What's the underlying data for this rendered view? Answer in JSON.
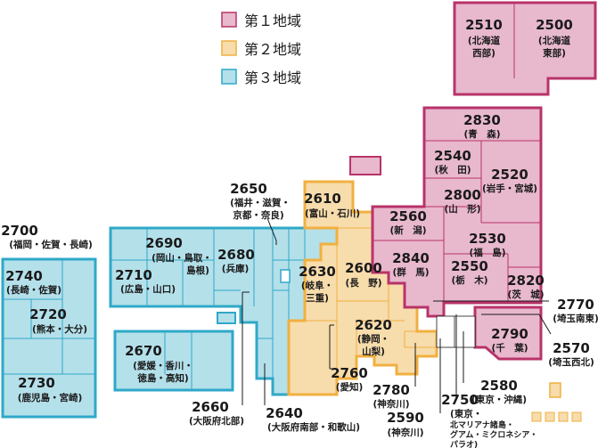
{
  "legend": [
    {
      "label": "第１地域",
      "color": "#e8b8cd",
      "border": "#b8336a"
    },
    {
      "label": "第２地域",
      "color": "#f7dcac",
      "border": "#f0b040"
    },
    {
      "label": "第３地域",
      "color": "#b4e0ea",
      "border": "#2fa8c8"
    }
  ],
  "regions": {
    "r2510": {
      "code": "2510",
      "name1": "(北海道",
      "name2": "西部)"
    },
    "r2500": {
      "code": "2500",
      "name1": "(北海道",
      "name2": "東部)"
    },
    "r2830": {
      "code": "2830",
      "name": "(青　森)"
    },
    "r2540": {
      "code": "2540",
      "name": "(秋　田)"
    },
    "r2520": {
      "code": "2520",
      "name": "(岩手・宮城)"
    },
    "r2800": {
      "code": "2800",
      "name": "(山　形)"
    },
    "r2560": {
      "code": "2560",
      "name": "(新　潟)"
    },
    "r2530": {
      "code": "2530",
      "name": "(福　島)"
    },
    "r2840": {
      "code": "2840",
      "name": "(群　馬)"
    },
    "r2550": {
      "code": "2550",
      "name": "(栃　木)"
    },
    "r2820": {
      "code": "2820",
      "name": "(茨　城)"
    },
    "r2790": {
      "code": "2790",
      "name": "(千　葉)"
    },
    "r2770": {
      "code": "2770",
      "name": "(埼玉南東)"
    },
    "r2570": {
      "code": "2570",
      "name": "(埼玉西北)"
    },
    "r2580": {
      "code": "2580",
      "name": "(東京・沖縄)"
    },
    "r2750": {
      "code": "2750",
      "name": "(東京・",
      "extra1": "北マリアナ諸島・",
      "extra2": "グアム・ミクロネシア・",
      "extra3": "パラオ)"
    },
    "r2590": {
      "code": "2590",
      "name": "(神奈川)"
    },
    "r2780": {
      "code": "2780",
      "name": "(神奈川)"
    },
    "r2760": {
      "code": "2760",
      "name": "(愛知)"
    },
    "r2620": {
      "code": "2620",
      "name1": "(静岡・",
      "name2": "山梨)"
    },
    "r2600": {
      "code": "2600",
      "name": "(長　野)"
    },
    "r2610": {
      "code": "2610",
      "name": "(富山・石川)"
    },
    "r2630": {
      "code": "2630",
      "name1": "(岐阜・",
      "name2": "三重)"
    },
    "r2650": {
      "code": "2650",
      "name1": "(福井・滋賀・",
      "name2": "京都・奈良)"
    },
    "r2680": {
      "code": "2680",
      "name": "(兵庫)"
    },
    "r2690": {
      "code": "2690",
      "name1": "(岡山・鳥取・",
      "name2": "島根)"
    },
    "r2710": {
      "code": "2710",
      "name": "(広島・山口)"
    },
    "r2670": {
      "code": "2670",
      "name1": "(愛媛・香川・",
      "name2": "徳島・高知)"
    },
    "r2660": {
      "code": "2660",
      "name": "(大阪府北部)"
    },
    "r2640": {
      "code": "2640",
      "name": "(大阪府南部・和歌山)"
    },
    "r2700": {
      "code": "2700",
      "name": "(福岡・佐賀・長崎)"
    },
    "r2740": {
      "code": "2740",
      "name": "(長崎・佐賀)"
    },
    "r2720": {
      "code": "2720",
      "name": "(熊本・大分)"
    },
    "r2730": {
      "code": "2730",
      "name": "(鹿児島・宮崎)"
    }
  }
}
